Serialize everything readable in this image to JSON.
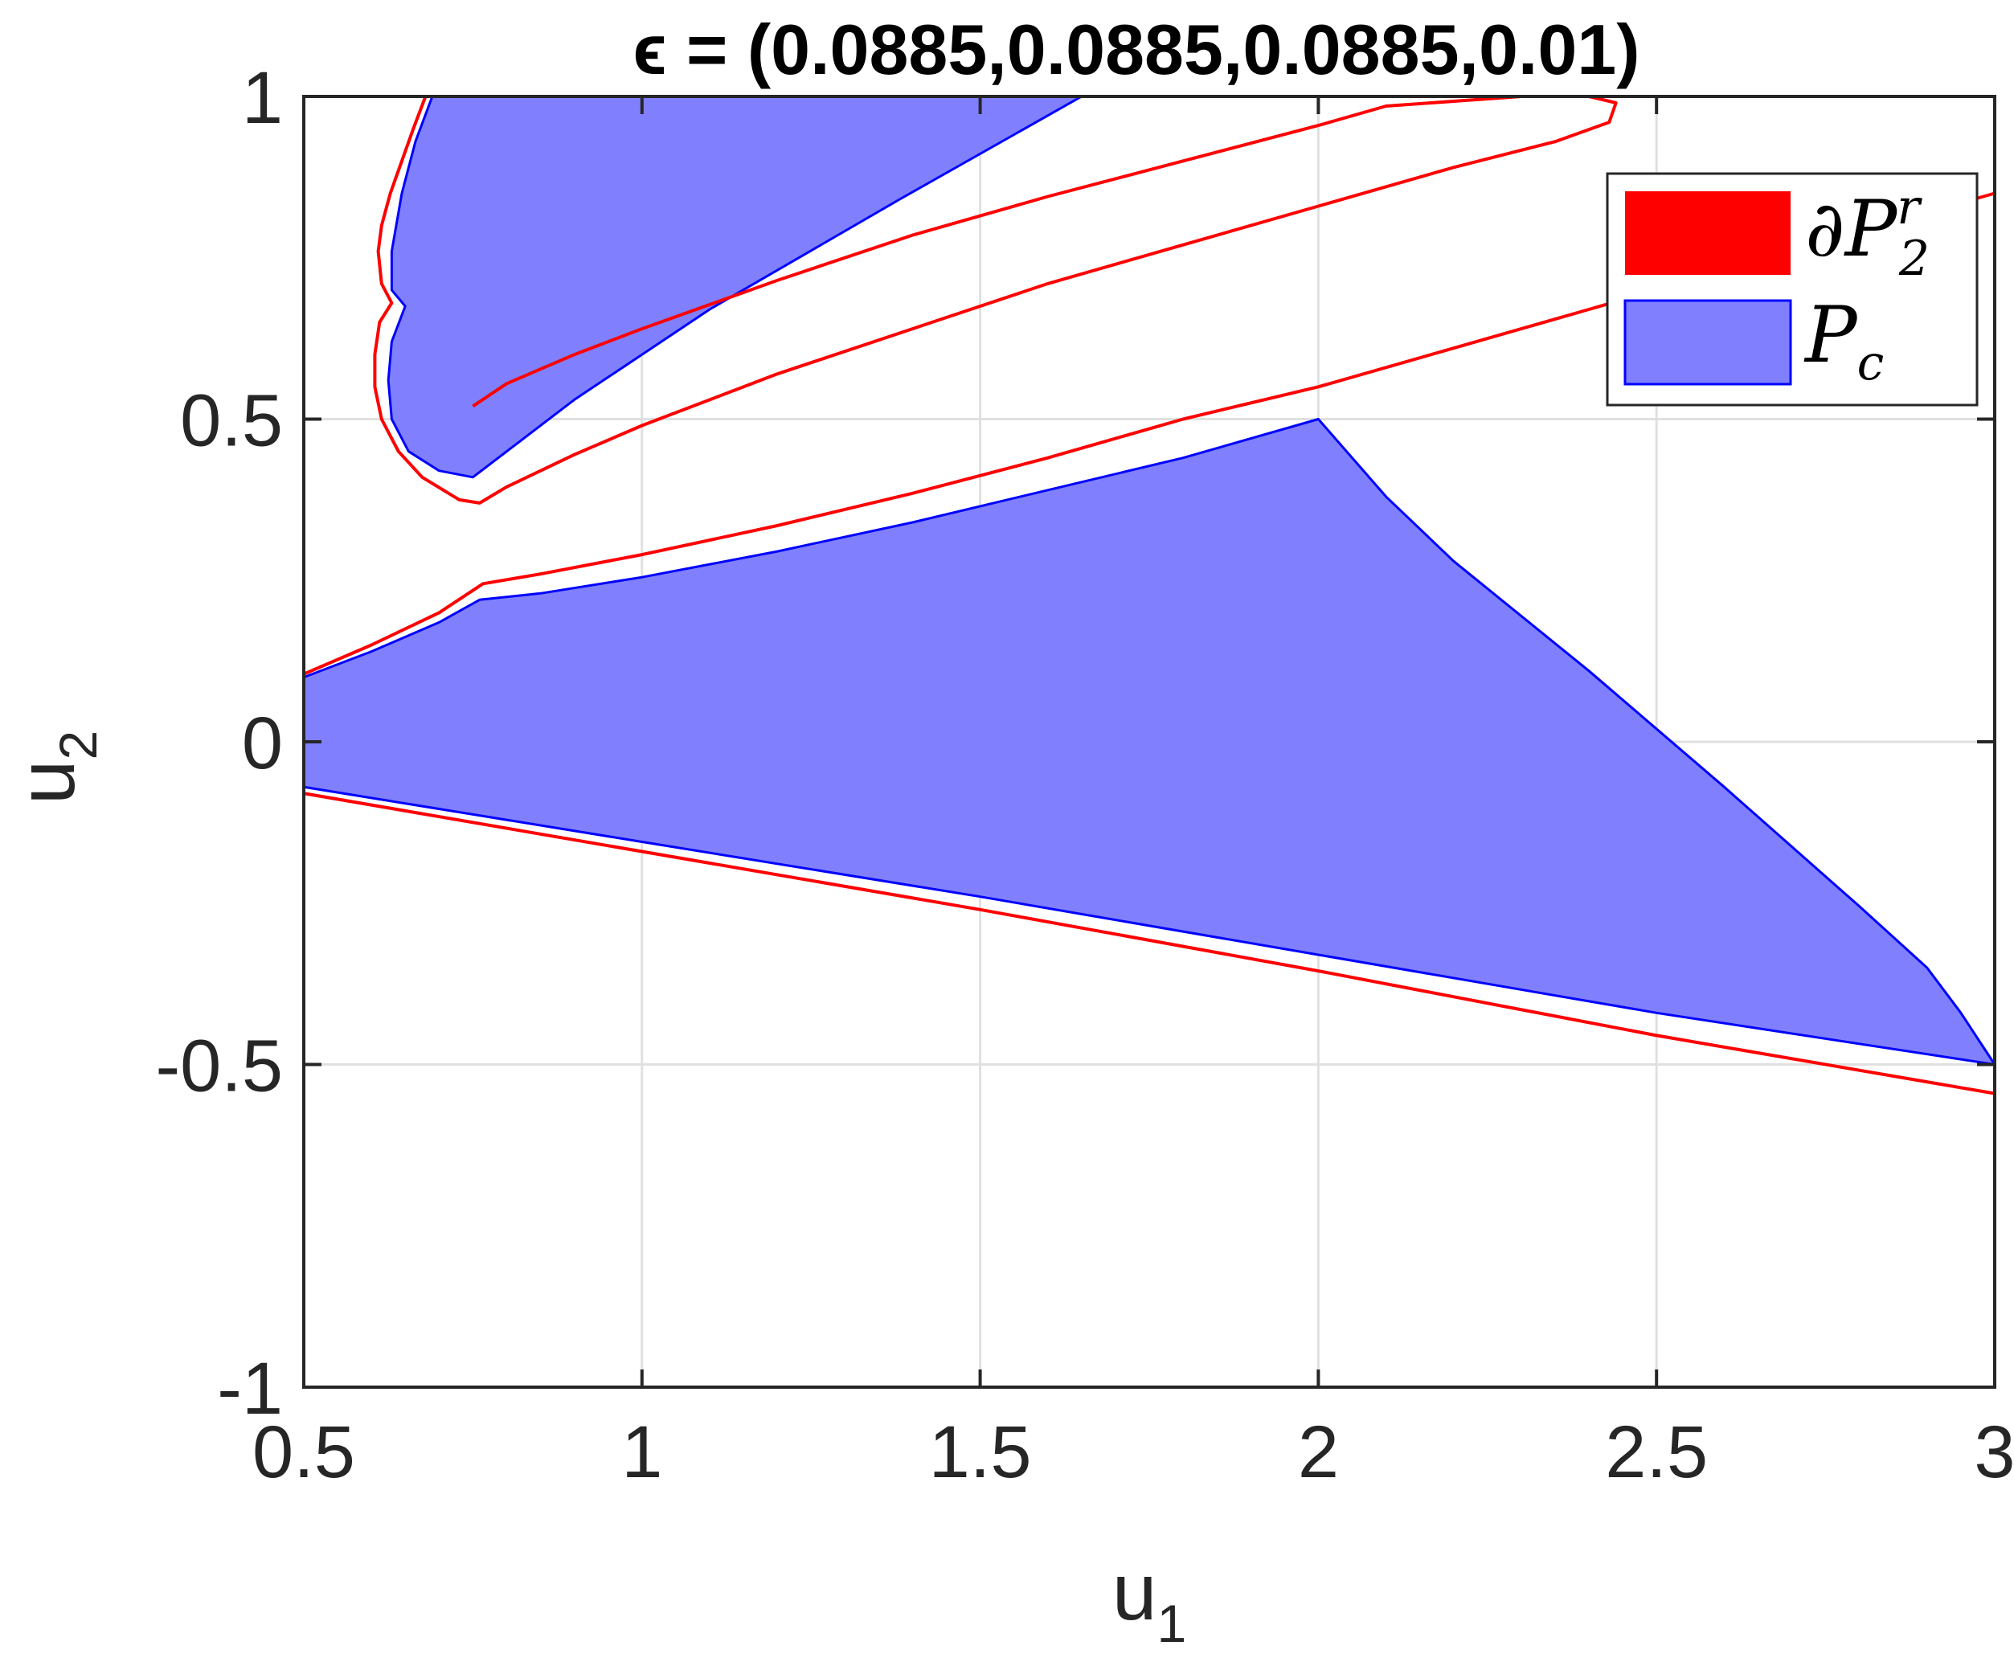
{
  "chart_data": {
    "type": "area",
    "title": "ϵ = (0.0885,0.0885,0.0885,0.01)",
    "xlabel": "u",
    "xlabel_sub": "1",
    "ylabel": "u",
    "ylabel_sub": "2",
    "xlim": [
      0.5,
      3
    ],
    "ylim": [
      -1,
      1
    ],
    "xticks": [
      0.5,
      1,
      1.5,
      2,
      2.5,
      3
    ],
    "xtick_labels": [
      "0.5",
      "1",
      "1.5",
      "2",
      "2.5",
      "3"
    ],
    "yticks": [
      -1,
      -0.5,
      0,
      0.5,
      1
    ],
    "ytick_labels": [
      "-1",
      "-0.5",
      "0",
      "0.5",
      "1"
    ],
    "grid": true,
    "legend_position": "top-right",
    "colors": {
      "boundary": "#ff0000",
      "region_fill": "#8080ff",
      "region_edge": "#0000ff",
      "grid": "#e0e0e0",
      "axes": "#262626"
    },
    "series": [
      {
        "name": "∂P2r",
        "legend_main": "∂P",
        "legend_sub": "2",
        "legend_sup": "r",
        "kind": "boundary",
        "color": "#ff0000",
        "curves": [
          [
            [
              0.68,
              1.0
            ],
            [
              0.662,
              0.95
            ],
            [
              0.645,
              0.9
            ],
            [
              0.628,
              0.85
            ],
            [
              0.615,
              0.8
            ],
            [
              0.61,
              0.76
            ],
            [
              0.615,
              0.71
            ],
            [
              0.63,
              0.68
            ],
            [
              0.612,
              0.65
            ],
            [
              0.605,
              0.6
            ],
            [
              0.605,
              0.55
            ],
            [
              0.615,
              0.5
            ],
            [
              0.64,
              0.45
            ],
            [
              0.675,
              0.41
            ],
            [
              0.73,
              0.375
            ],
            [
              0.76,
              0.37
            ],
            [
              0.8,
              0.395
            ],
            [
              0.9,
              0.445
            ],
            [
              1.0,
              0.49
            ],
            [
              1.2,
              0.57
            ],
            [
              1.4,
              0.64
            ],
            [
              1.6,
              0.71
            ],
            [
              1.8,
              0.77
            ],
            [
              2.0,
              0.83
            ],
            [
              2.2,
              0.89
            ],
            [
              2.35,
              0.93
            ],
            [
              2.43,
              0.96
            ],
            [
              2.44,
              0.99
            ],
            [
              2.4,
              1.0
            ],
            [
              2.3,
              1.0
            ],
            [
              2.1,
              0.985
            ],
            [
              2.0,
              0.955
            ],
            [
              1.8,
              0.9
            ],
            [
              1.6,
              0.845
            ],
            [
              1.4,
              0.785
            ],
            [
              1.2,
              0.715
            ],
            [
              1.0,
              0.64
            ],
            [
              0.9,
              0.6
            ],
            [
              0.8,
              0.555
            ],
            [
              0.75,
              0.52
            ]
          ],
          [
            [
              0.5,
              0.105
            ],
            [
              0.6,
              0.15
            ],
            [
              0.7,
              0.2
            ],
            [
              0.765,
              0.245
            ],
            [
              0.85,
              0.26
            ],
            [
              1.0,
              0.29
            ],
            [
              1.2,
              0.335
            ],
            [
              1.4,
              0.385
            ],
            [
              1.6,
              0.44
            ],
            [
              1.8,
              0.5
            ],
            [
              2.0,
              0.55
            ],
            [
              2.2,
              0.61
            ],
            [
              2.4,
              0.67
            ],
            [
              2.6,
              0.73
            ],
            [
              2.8,
              0.79
            ],
            [
              3.0,
              0.85
            ]
          ],
          [
            [
              0.5,
              -0.08
            ],
            [
              1.0,
              -0.17
            ],
            [
              1.5,
              -0.26
            ],
            [
              2.0,
              -0.355
            ],
            [
              2.5,
              -0.455
            ],
            [
              3.0,
              -0.545
            ]
          ]
        ]
      },
      {
        "name": "Pc",
        "legend_main": "P",
        "legend_sub": "c",
        "kind": "region",
        "color": "#8080ff",
        "edge_color": "#0000ff",
        "polygons": [
          [
            [
              0.69,
              1.0
            ],
            [
              1.65,
              1.0
            ],
            [
              1.38,
              0.84
            ],
            [
              1.1,
              0.67
            ],
            [
              0.9,
              0.53
            ],
            [
              0.75,
              0.41
            ],
            [
              0.7,
              0.42
            ],
            [
              0.655,
              0.45
            ],
            [
              0.63,
              0.5
            ],
            [
              0.625,
              0.56
            ],
            [
              0.63,
              0.62
            ],
            [
              0.65,
              0.675
            ],
            [
              0.63,
              0.7
            ],
            [
              0.63,
              0.76
            ],
            [
              0.645,
              0.85
            ],
            [
              0.665,
              0.93
            ]
          ],
          [
            [
              0.5,
              0.1
            ],
            [
              0.6,
              0.14
            ],
            [
              0.7,
              0.185
            ],
            [
              0.76,
              0.22
            ],
            [
              0.85,
              0.23
            ],
            [
              1.0,
              0.255
            ],
            [
              1.2,
              0.295
            ],
            [
              1.4,
              0.34
            ],
            [
              1.6,
              0.39
            ],
            [
              1.8,
              0.44
            ],
            [
              2.0,
              0.5
            ],
            [
              2.1,
              0.38
            ],
            [
              2.2,
              0.28
            ],
            [
              2.4,
              0.11
            ],
            [
              2.6,
              -0.07
            ],
            [
              2.8,
              -0.255
            ],
            [
              2.9,
              -0.35
            ],
            [
              2.95,
              -0.42
            ],
            [
              3.0,
              -0.5
            ],
            [
              2.5,
              -0.42
            ],
            [
              2.0,
              -0.33
            ],
            [
              1.5,
              -0.24
            ],
            [
              1.0,
              -0.155
            ],
            [
              0.5,
              -0.07
            ]
          ]
        ]
      }
    ]
  }
}
